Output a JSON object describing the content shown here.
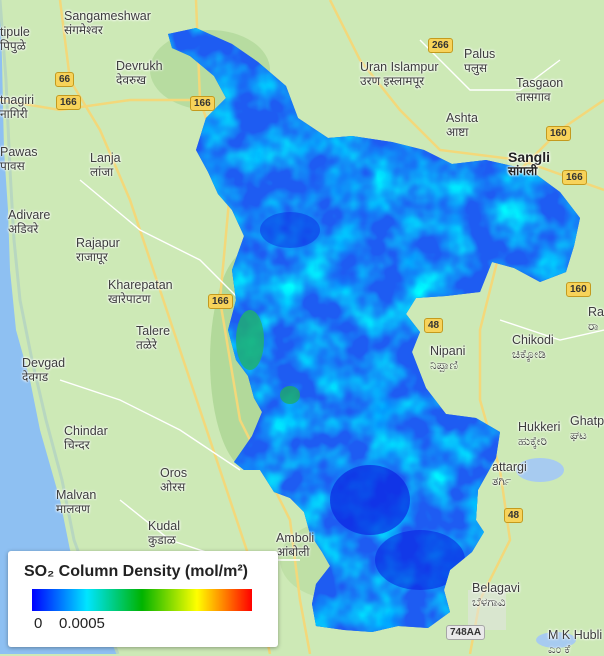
{
  "legend": {
    "title": "SO₂ Column Density (mol/m²)",
    "min_label": "0",
    "max_label": "0.0005",
    "colors": [
      "#0000ff",
      "#00e5ff",
      "#00b300",
      "#ffff00",
      "#ff0000"
    ]
  },
  "places": [
    {
      "name": "Sangameshwar",
      "local": "संगमेश्वर"
    },
    {
      "name": "tipule",
      "local": "पिपुळे"
    },
    {
      "name": "Pawas",
      "local": "पावस"
    },
    {
      "name": "Devrukh",
      "local": "देवरुख"
    },
    {
      "name": "tnagiri",
      "local": "नागिरी"
    },
    {
      "name": "Lanja",
      "local": "लांजा"
    },
    {
      "name": "Adivare",
      "local": "अडिवरे"
    },
    {
      "name": "Rajapur",
      "local": "राजापूर"
    },
    {
      "name": "Kharepatan",
      "local": "खारेपाटण"
    },
    {
      "name": "Talere",
      "local": "तळेरे"
    },
    {
      "name": "Devgad",
      "local": "देवगड"
    },
    {
      "name": "Chindar",
      "local": "चिन्दर"
    },
    {
      "name": "Oros",
      "local": "ओरस"
    },
    {
      "name": "Malvan",
      "local": "मालवण"
    },
    {
      "name": "Kudal",
      "local": "कुडाळ"
    },
    {
      "name": "Amboli",
      "local": "आंबोली"
    },
    {
      "name": "Uran Islampur",
      "local": "उरण इस्लामपूर"
    },
    {
      "name": "Palus",
      "local": "पलुस"
    },
    {
      "name": "Tasgaon",
      "local": "तासगाव"
    },
    {
      "name": "Ashta",
      "local": "आष्टा"
    },
    {
      "name": "Sangli",
      "local": "सांगली"
    },
    {
      "name": "Chikodi",
      "local": "ಚಿಕ್ಕೋಡಿ"
    },
    {
      "name": "Nipani",
      "local": "ನಿಪ್ಪಾಣಿ"
    },
    {
      "name": "Hukkeri",
      "local": "ಹುಕ್ಕೇರಿ"
    },
    {
      "name": "Ghatpi",
      "local": "ಘಟ"
    },
    {
      "name": "Ra",
      "local": "ರಾ"
    },
    {
      "name": "attargi",
      "local": "ತರ್ಗಿ"
    },
    {
      "name": "Belagavi",
      "local": "ಬೆಳಗಾವಿ"
    },
    {
      "name": "M K Hubli",
      "local": "ಎಂ ಕೆ"
    }
  ],
  "road_shields": [
    "266",
    "66",
    "166",
    "166",
    "160",
    "166",
    "160",
    "166",
    "48",
    "48",
    "748AA"
  ]
}
